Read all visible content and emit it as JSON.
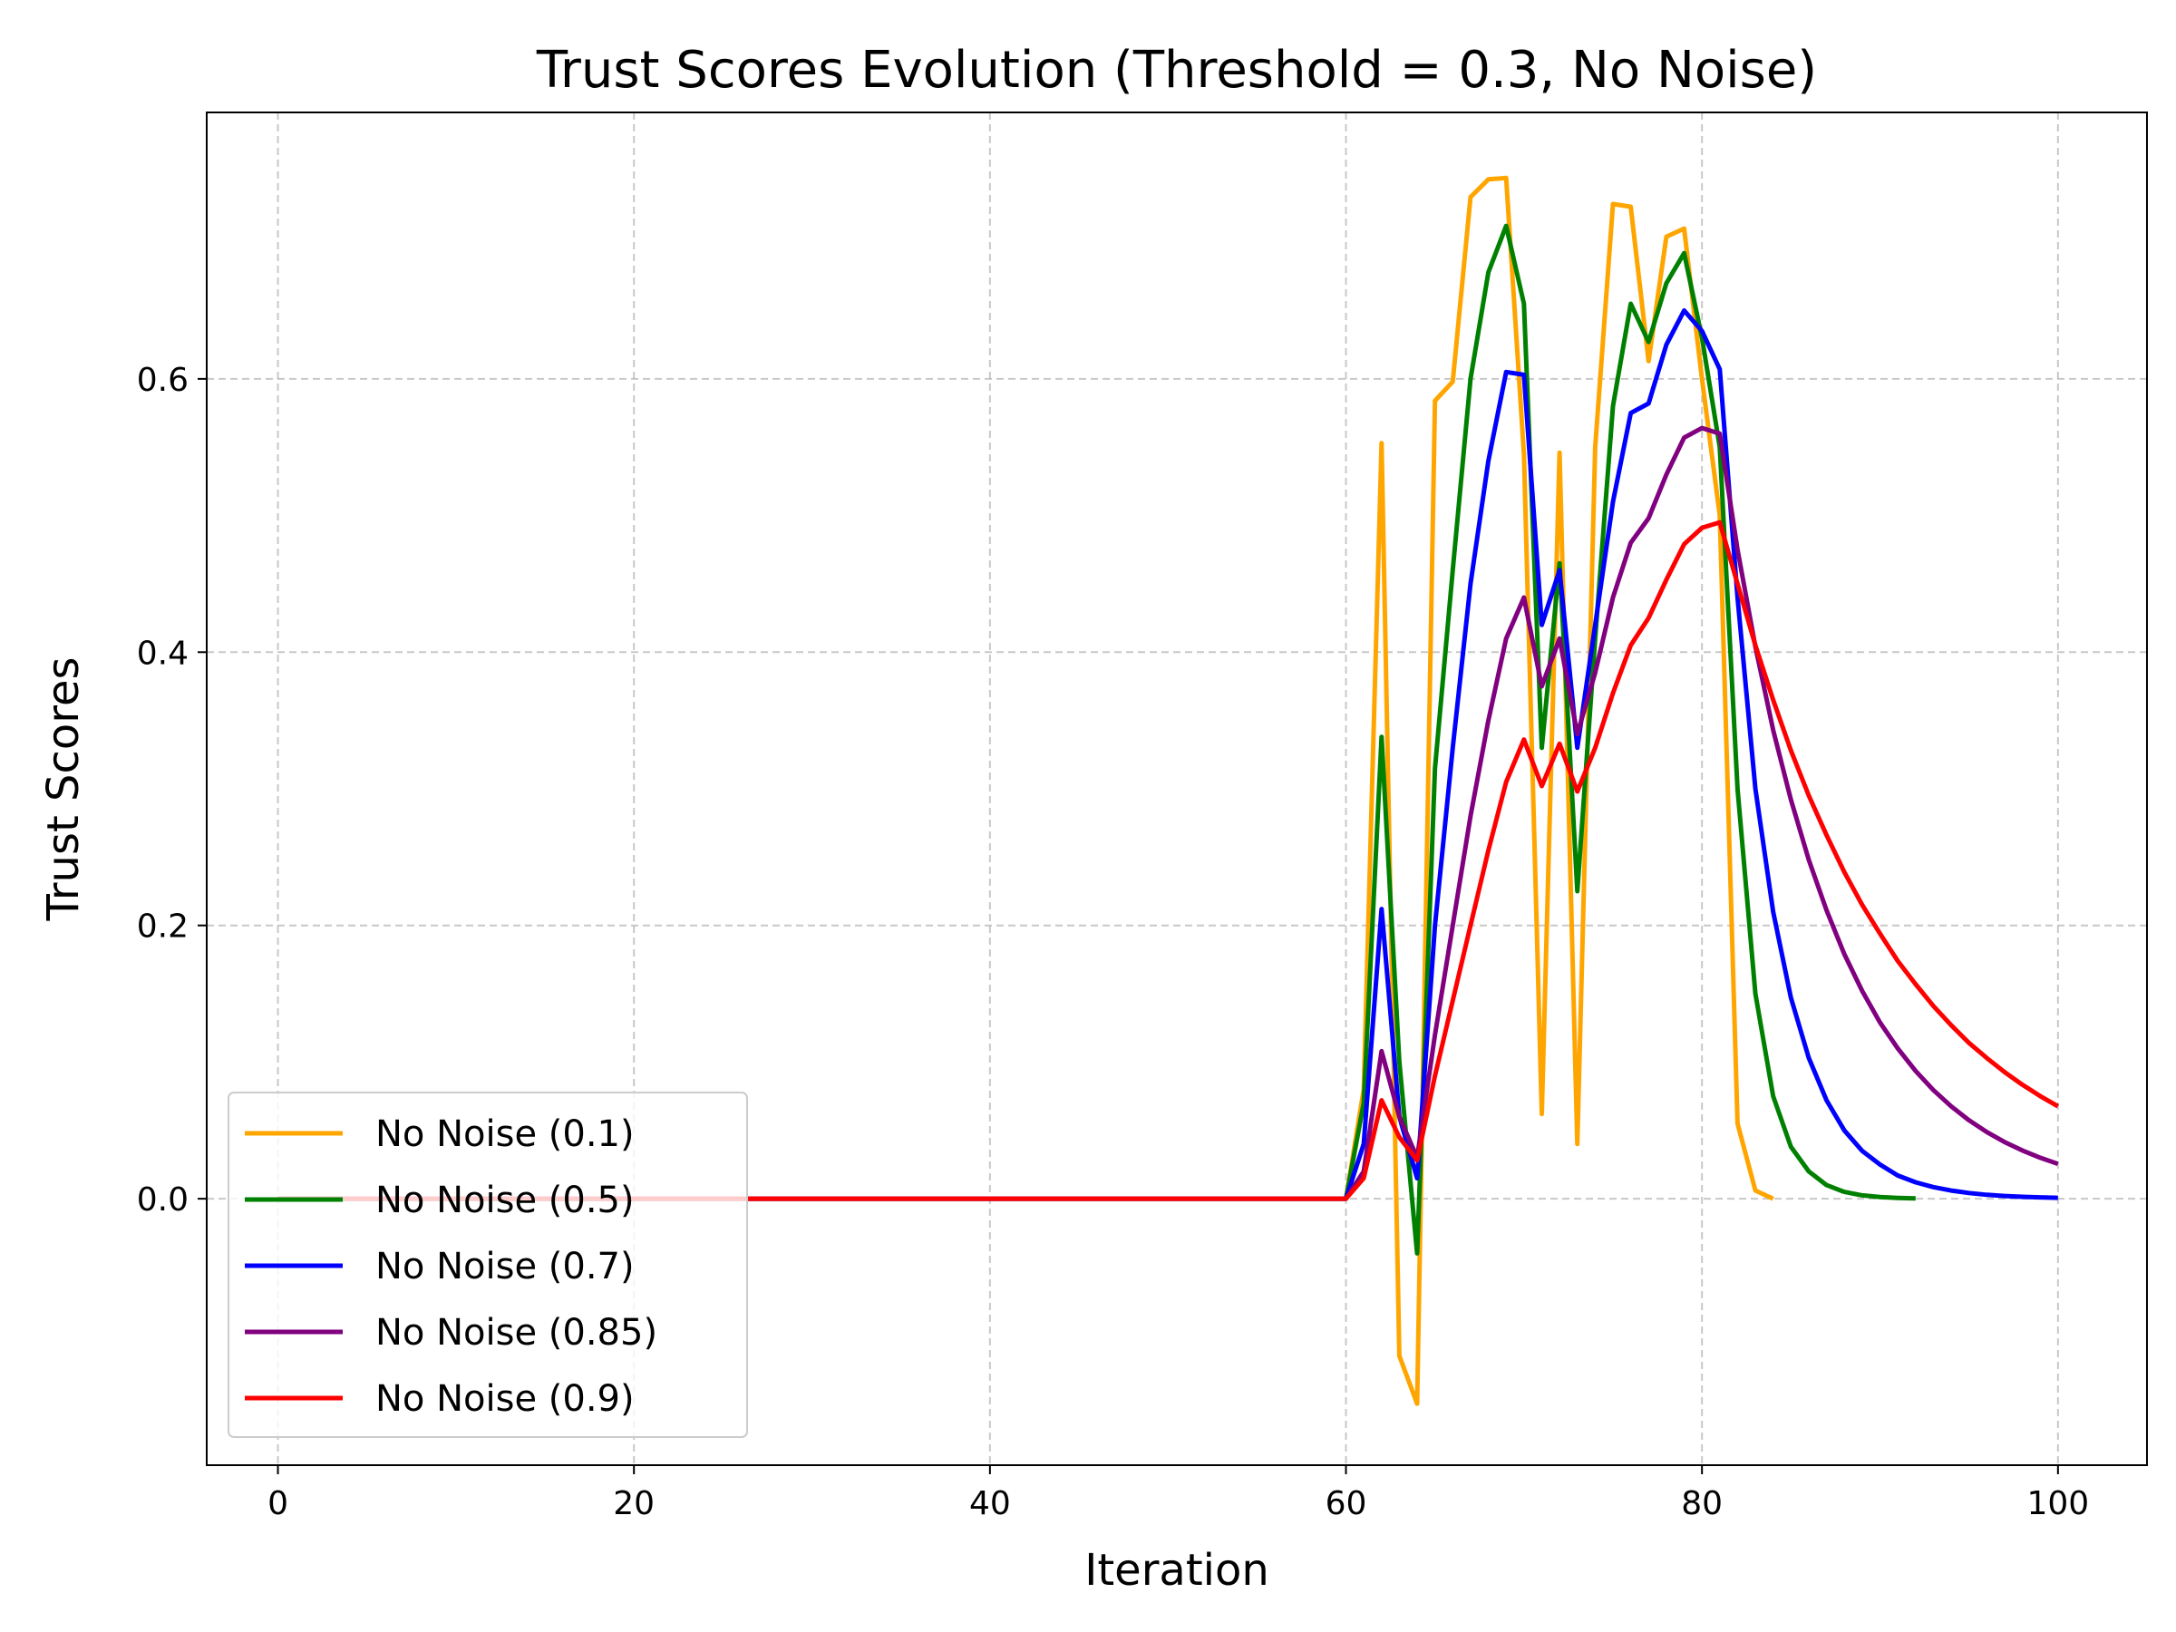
{
  "chart_data": {
    "type": "line",
    "title": "Trust Scores Evolution (Threshold = 0.3, No Noise)",
    "xlabel": "Iteration",
    "ylabel": "Trust Scores",
    "xlim": [
      -4,
      105
    ],
    "ylim": [
      -0.195,
      0.795
    ],
    "xticks": [
      0,
      20,
      40,
      60,
      80,
      100
    ],
    "yticks": [
      0.0,
      0.2,
      0.4,
      0.6
    ],
    "xtick_labels": [
      "0",
      "20",
      "40",
      "60",
      "80",
      "100"
    ],
    "ytick_labels": [
      "0.0",
      "0.2",
      "0.4",
      "0.6"
    ],
    "grid": true,
    "legend_position": "lower-left",
    "series": [
      {
        "name": "No Noise (0.1)",
        "color": "#FFA500",
        "points": [
          [
            0,
            0
          ],
          [
            60,
            0
          ],
          [
            61,
            0.08
          ],
          [
            62,
            0.553
          ],
          [
            63,
            -0.115
          ],
          [
            64,
            -0.15
          ],
          [
            65,
            0.584
          ],
          [
            66,
            0.598
          ],
          [
            67,
            0.733
          ],
          [
            68,
            0.746
          ],
          [
            69,
            0.747
          ],
          [
            70,
            0.545
          ],
          [
            71,
            0.062
          ],
          [
            72,
            0.546
          ],
          [
            73,
            0.04
          ],
          [
            74,
            0.55
          ],
          [
            75,
            0.728
          ],
          [
            76,
            0.726
          ],
          [
            77,
            0.613
          ],
          [
            78,
            0.704
          ],
          [
            79,
            0.71
          ],
          [
            80,
            0.6
          ],
          [
            81,
            0.5
          ],
          [
            82,
            0.055
          ],
          [
            83,
            0.006
          ],
          [
            84,
            0.0
          ]
        ]
      },
      {
        "name": "No Noise (0.5)",
        "color": "#008000",
        "points": [
          [
            0,
            0
          ],
          [
            60,
            0
          ],
          [
            61,
            0.07
          ],
          [
            62,
            0.338
          ],
          [
            63,
            0.1
          ],
          [
            64,
            -0.04
          ],
          [
            65,
            0.315
          ],
          [
            66,
            0.46
          ],
          [
            67,
            0.6
          ],
          [
            68,
            0.678
          ],
          [
            69,
            0.712
          ],
          [
            70,
            0.655
          ],
          [
            71,
            0.33
          ],
          [
            72,
            0.465
          ],
          [
            73,
            0.225
          ],
          [
            74,
            0.41
          ],
          [
            75,
            0.58
          ],
          [
            76,
            0.655
          ],
          [
            77,
            0.627
          ],
          [
            78,
            0.67
          ],
          [
            79,
            0.692
          ],
          [
            80,
            0.63
          ],
          [
            81,
            0.55
          ],
          [
            82,
            0.3
          ],
          [
            83,
            0.15
          ],
          [
            84,
            0.075
          ],
          [
            85,
            0.038
          ],
          [
            86,
            0.02
          ],
          [
            87,
            0.01
          ],
          [
            88,
            0.005
          ],
          [
            89,
            0.0025
          ],
          [
            90,
            0.0012
          ],
          [
            91,
            0.0006
          ],
          [
            92,
            0.0003
          ]
        ]
      },
      {
        "name": "No Noise (0.7)",
        "color": "#0000FF",
        "points": [
          [
            0,
            0
          ],
          [
            60,
            0
          ],
          [
            61,
            0.04
          ],
          [
            62,
            0.212
          ],
          [
            63,
            0.06
          ],
          [
            64,
            0.015
          ],
          [
            65,
            0.2
          ],
          [
            66,
            0.33
          ],
          [
            67,
            0.45
          ],
          [
            68,
            0.54
          ],
          [
            69,
            0.605
          ],
          [
            70,
            0.603
          ],
          [
            71,
            0.42
          ],
          [
            72,
            0.46
          ],
          [
            73,
            0.33
          ],
          [
            74,
            0.42
          ],
          [
            75,
            0.51
          ],
          [
            76,
            0.575
          ],
          [
            77,
            0.582
          ],
          [
            78,
            0.625
          ],
          [
            79,
            0.65
          ],
          [
            80,
            0.635
          ],
          [
            81,
            0.607
          ],
          [
            82,
            0.44
          ],
          [
            83,
            0.3
          ],
          [
            84,
            0.21
          ],
          [
            85,
            0.147
          ],
          [
            86,
            0.103
          ],
          [
            87,
            0.072
          ],
          [
            88,
            0.05
          ],
          [
            89,
            0.035
          ],
          [
            90,
            0.025
          ],
          [
            91,
            0.017
          ],
          [
            92,
            0.012
          ],
          [
            93,
            0.0085
          ],
          [
            94,
            0.006
          ],
          [
            95,
            0.0042
          ],
          [
            96,
            0.0029
          ],
          [
            97,
            0.002
          ],
          [
            98,
            0.0014
          ],
          [
            99,
            0.001
          ],
          [
            100,
            0.0007
          ]
        ]
      },
      {
        "name": "No Noise (0.85)",
        "color": "#800080",
        "points": [
          [
            0,
            0
          ],
          [
            60,
            0
          ],
          [
            61,
            0.02
          ],
          [
            62,
            0.108
          ],
          [
            63,
            0.06
          ],
          [
            64,
            0.03
          ],
          [
            65,
            0.12
          ],
          [
            66,
            0.2
          ],
          [
            67,
            0.28
          ],
          [
            68,
            0.35
          ],
          [
            69,
            0.41
          ],
          [
            70,
            0.44
          ],
          [
            71,
            0.375
          ],
          [
            72,
            0.41
          ],
          [
            73,
            0.34
          ],
          [
            74,
            0.385
          ],
          [
            75,
            0.44
          ],
          [
            76,
            0.48
          ],
          [
            77,
            0.498
          ],
          [
            78,
            0.53
          ],
          [
            79,
            0.557
          ],
          [
            80,
            0.564
          ],
          [
            81,
            0.56
          ],
          [
            82,
            0.475
          ],
          [
            83,
            0.404
          ],
          [
            84,
            0.343
          ],
          [
            85,
            0.292
          ],
          [
            86,
            0.248
          ],
          [
            87,
            0.211
          ],
          [
            88,
            0.179
          ],
          [
            89,
            0.152
          ],
          [
            90,
            0.129
          ],
          [
            91,
            0.11
          ],
          [
            92,
            0.0935
          ],
          [
            93,
            0.0795
          ],
          [
            94,
            0.0676
          ],
          [
            95,
            0.0574
          ],
          [
            96,
            0.0488
          ],
          [
            97,
            0.0415
          ],
          [
            98,
            0.0353
          ],
          [
            99,
            0.03
          ],
          [
            100,
            0.0255
          ]
        ]
      },
      {
        "name": "No Noise (0.9)",
        "color": "#FF0000",
        "points": [
          [
            0,
            0
          ],
          [
            60,
            0
          ],
          [
            61,
            0.015
          ],
          [
            62,
            0.072
          ],
          [
            63,
            0.045
          ],
          [
            64,
            0.028
          ],
          [
            65,
            0.09
          ],
          [
            66,
            0.145
          ],
          [
            67,
            0.2
          ],
          [
            68,
            0.255
          ],
          [
            69,
            0.305
          ],
          [
            70,
            0.336
          ],
          [
            71,
            0.302
          ],
          [
            72,
            0.333
          ],
          [
            73,
            0.298
          ],
          [
            74,
            0.33
          ],
          [
            75,
            0.37
          ],
          [
            76,
            0.405
          ],
          [
            77,
            0.425
          ],
          [
            78,
            0.453
          ],
          [
            79,
            0.479
          ],
          [
            80,
            0.491
          ],
          [
            81,
            0.495
          ],
          [
            82,
            0.45
          ],
          [
            83,
            0.405
          ],
          [
            84,
            0.365
          ],
          [
            85,
            0.328
          ],
          [
            86,
            0.295
          ],
          [
            87,
            0.266
          ],
          [
            88,
            0.239
          ],
          [
            89,
            0.215
          ],
          [
            90,
            0.194
          ],
          [
            91,
            0.174
          ],
          [
            92,
            0.157
          ],
          [
            93,
            0.141
          ],
          [
            94,
            0.127
          ],
          [
            95,
            0.114
          ],
          [
            96,
            0.103
          ],
          [
            97,
            0.0927
          ],
          [
            98,
            0.0834
          ],
          [
            99,
            0.0751
          ],
          [
            100,
            0.0676
          ]
        ]
      }
    ]
  }
}
